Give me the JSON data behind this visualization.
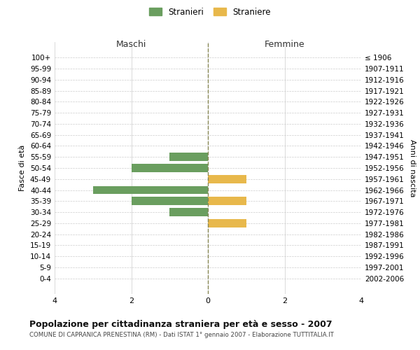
{
  "age_groups": [
    "100+",
    "95-99",
    "90-94",
    "85-89",
    "80-84",
    "75-79",
    "70-74",
    "65-69",
    "60-64",
    "55-59",
    "50-54",
    "45-49",
    "40-44",
    "35-39",
    "30-34",
    "25-29",
    "20-24",
    "15-19",
    "10-14",
    "5-9",
    "0-4"
  ],
  "birth_years": [
    "≤ 1906",
    "1907-1911",
    "1912-1916",
    "1917-1921",
    "1922-1926",
    "1927-1931",
    "1932-1936",
    "1937-1941",
    "1942-1946",
    "1947-1951",
    "1952-1956",
    "1957-1961",
    "1962-1966",
    "1967-1971",
    "1972-1976",
    "1977-1981",
    "1982-1986",
    "1987-1991",
    "1992-1996",
    "1997-2001",
    "2002-2006"
  ],
  "males": [
    0,
    0,
    0,
    0,
    0,
    0,
    0,
    0,
    0,
    1,
    2,
    0,
    3,
    2,
    1,
    0,
    0,
    0,
    0,
    0,
    0
  ],
  "females": [
    0,
    0,
    0,
    0,
    0,
    0,
    0,
    0,
    0,
    0,
    0,
    1,
    0,
    1,
    0,
    1,
    0,
    0,
    0,
    0,
    0
  ],
  "male_color": "#6a9e5f",
  "female_color": "#e8b84b",
  "xlim": 4,
  "xlabel_left": "Maschi",
  "xlabel_right": "Femmine",
  "ylabel_left": "Fasce di età",
  "ylabel_right": "Anni di nascita",
  "title": "Popolazione per cittadinanza straniera per età e sesso - 2007",
  "subtitle": "COMUNE DI CAPRANICA PRENESTINA (RM) - Dati ISTAT 1° gennaio 2007 - Elaborazione TUTTITALIA.IT",
  "legend_male": "Stranieri",
  "legend_female": "Straniere",
  "bg_color": "#ffffff",
  "grid_color": "#cccccc",
  "axis_line_color": "#888855",
  "bar_height": 0.75
}
